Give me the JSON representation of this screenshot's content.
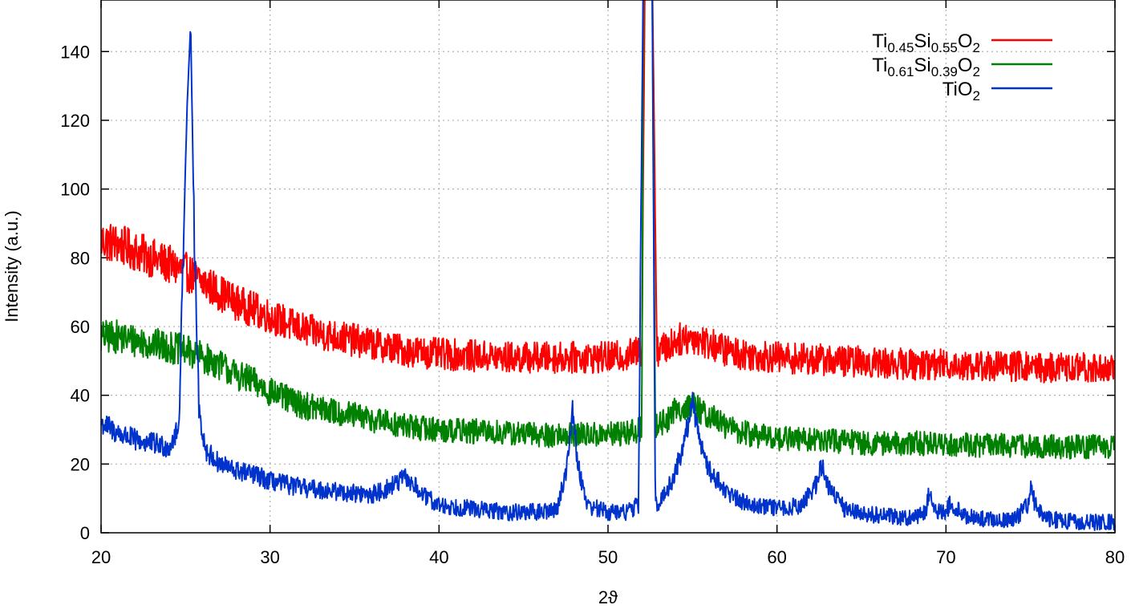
{
  "chart_data": {
    "type": "line",
    "title": "",
    "xlabel": "2ϑ",
    "ylabel": "Intensity (a.u.)",
    "xlim": [
      20,
      80
    ],
    "ylim": [
      0,
      155
    ],
    "xticks": [
      20,
      30,
      40,
      50,
      60,
      70,
      80
    ],
    "yticks": [
      0,
      20,
      40,
      60,
      80,
      100,
      120,
      140
    ],
    "grid": true,
    "legend_position": "top-right",
    "series": [
      {
        "name": "Ti0.45Si0.55O2",
        "name_parts": {
          "base": "Ti",
          "sub1": "0.45",
          "mid": "Si",
          "sub2": "0.55",
          "end": "O",
          "sub3": "2"
        },
        "color": "#ff0000",
        "noise": 5,
        "points": [
          [
            20,
            85
          ],
          [
            21,
            84
          ],
          [
            22,
            82
          ],
          [
            23,
            80
          ],
          [
            24,
            78
          ],
          [
            25,
            76
          ],
          [
            26,
            73
          ],
          [
            27,
            70
          ],
          [
            28,
            67
          ],
          [
            29,
            65
          ],
          [
            30,
            63
          ],
          [
            31,
            61
          ],
          [
            32,
            59
          ],
          [
            33,
            58
          ],
          [
            34,
            57
          ],
          [
            35,
            56
          ],
          [
            36,
            55
          ],
          [
            37,
            54
          ],
          [
            38,
            53
          ],
          [
            39,
            52.5
          ],
          [
            40,
            52
          ],
          [
            42,
            51.5
          ],
          [
            44,
            51
          ],
          [
            46,
            51
          ],
          [
            48,
            51
          ],
          [
            50,
            51
          ],
          [
            51,
            51.5
          ],
          [
            52,
            53
          ],
          [
            52.2,
            170
          ],
          [
            52.6,
            170
          ],
          [
            52.9,
            53
          ],
          [
            53.5,
            54
          ],
          [
            54,
            56
          ],
          [
            55,
            57
          ],
          [
            56,
            55
          ],
          [
            57,
            53
          ],
          [
            58,
            52
          ],
          [
            60,
            51
          ],
          [
            62,
            50.5
          ],
          [
            64,
            50
          ],
          [
            66,
            49.5
          ],
          [
            68,
            49
          ],
          [
            70,
            49
          ],
          [
            72,
            48.5
          ],
          [
            74,
            48.5
          ],
          [
            76,
            48
          ],
          [
            78,
            48
          ],
          [
            80,
            48
          ]
        ]
      },
      {
        "name": "Ti0.61Si0.39O2",
        "name_parts": {
          "base": "Ti",
          "sub1": "0.61",
          "mid": "Si",
          "sub2": "0.39",
          "end": "O",
          "sub3": "2"
        },
        "color": "#008000",
        "noise": 5,
        "points": [
          [
            20,
            57
          ],
          [
            21,
            57
          ],
          [
            22,
            56
          ],
          [
            23,
            55
          ],
          [
            24,
            54
          ],
          [
            25,
            53
          ],
          [
            26,
            51
          ],
          [
            27,
            49
          ],
          [
            28,
            46
          ],
          [
            29,
            44
          ],
          [
            30,
            41
          ],
          [
            31,
            39
          ],
          [
            32,
            37
          ],
          [
            33,
            36
          ],
          [
            34,
            35
          ],
          [
            35,
            34
          ],
          [
            36,
            33
          ],
          [
            37,
            32
          ],
          [
            38,
            31
          ],
          [
            39,
            30.5
          ],
          [
            40,
            30
          ],
          [
            42,
            29.5
          ],
          [
            44,
            29
          ],
          [
            46,
            28.5
          ],
          [
            48,
            28.5
          ],
          [
            50,
            28.5
          ],
          [
            51,
            29
          ],
          [
            52,
            30
          ],
          [
            52.1,
            170
          ],
          [
            52.6,
            170
          ],
          [
            52.8,
            31
          ],
          [
            53.5,
            33
          ],
          [
            54,
            36
          ],
          [
            55,
            37
          ],
          [
            56,
            34
          ],
          [
            57,
            31
          ],
          [
            58,
            29
          ],
          [
            60,
            27.5
          ],
          [
            62,
            27
          ],
          [
            64,
            26.5
          ],
          [
            66,
            26
          ],
          [
            68,
            26
          ],
          [
            70,
            26
          ],
          [
            72,
            25.5
          ],
          [
            74,
            25.5
          ],
          [
            76,
            25
          ],
          [
            78,
            25
          ],
          [
            80,
            25
          ]
        ]
      },
      {
        "name": "TiO2",
        "name_parts": {
          "base": "TiO",
          "sub1": "2"
        },
        "color": "#0033cc",
        "noise": 4.5,
        "points": [
          [
            20,
            32
          ],
          [
            21,
            29
          ],
          [
            22,
            27
          ],
          [
            23,
            26
          ],
          [
            24,
            25
          ],
          [
            24.6,
            30
          ],
          [
            24.9,
            90
          ],
          [
            25.1,
            125
          ],
          [
            25.3,
            148
          ],
          [
            25.5,
            90
          ],
          [
            25.8,
            35
          ],
          [
            26.2,
            24
          ],
          [
            27,
            20
          ],
          [
            28,
            18
          ],
          [
            29,
            17
          ],
          [
            30,
            15
          ],
          [
            31,
            14
          ],
          [
            32,
            13
          ],
          [
            33,
            12.5
          ],
          [
            34,
            12
          ],
          [
            35,
            11.5
          ],
          [
            36,
            11
          ],
          [
            37,
            13
          ],
          [
            38,
            16
          ],
          [
            38.5,
            14
          ],
          [
            39,
            11
          ],
          [
            40,
            8
          ],
          [
            42,
            7
          ],
          [
            44,
            6
          ],
          [
            46,
            6
          ],
          [
            47,
            7
          ],
          [
            47.6,
            20
          ],
          [
            47.9,
            37
          ],
          [
            48.2,
            20
          ],
          [
            48.8,
            8
          ],
          [
            50,
            6
          ],
          [
            51,
            6
          ],
          [
            51.8,
            8
          ],
          [
            52.1,
            170
          ],
          [
            52.6,
            170
          ],
          [
            52.8,
            8
          ],
          [
            53.5,
            12
          ],
          [
            54,
            18
          ],
          [
            54.5,
            26
          ],
          [
            55,
            38
          ],
          [
            55.5,
            26
          ],
          [
            56,
            18
          ],
          [
            57,
            12
          ],
          [
            58,
            9
          ],
          [
            60,
            7
          ],
          [
            61.5,
            8
          ],
          [
            62.3,
            14
          ],
          [
            62.6,
            20
          ],
          [
            63,
            14
          ],
          [
            64,
            7
          ],
          [
            66,
            5
          ],
          [
            68,
            4.5
          ],
          [
            68.8,
            6
          ],
          [
            69,
            12
          ],
          [
            69.3,
            6
          ],
          [
            70,
            6
          ],
          [
            70.3,
            9
          ],
          [
            71,
            5
          ],
          [
            72,
            4
          ],
          [
            74,
            3.5
          ],
          [
            74.8,
            8
          ],
          [
            75,
            13
          ],
          [
            75.3,
            8
          ],
          [
            76,
            4
          ],
          [
            78,
            3
          ],
          [
            80,
            3
          ]
        ]
      }
    ]
  }
}
